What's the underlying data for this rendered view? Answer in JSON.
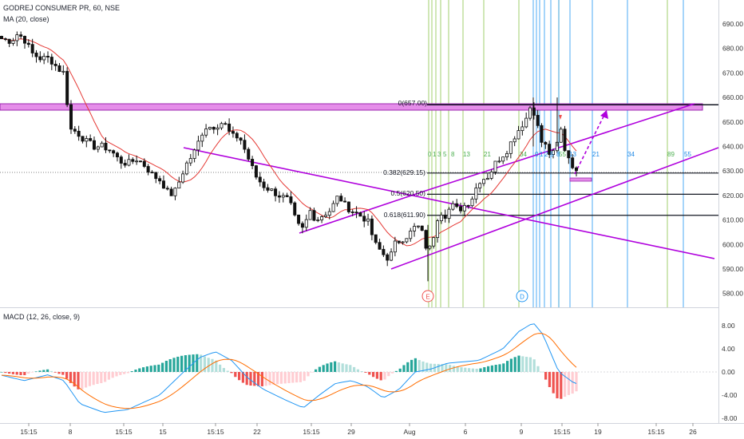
{
  "header": {
    "title": "GODREJ CONSUMER PR, 60, NSE",
    "indicator": "MA (20, close)"
  },
  "macd_panel": {
    "label": "MACD (12, 26, close, 9)"
  },
  "colors": {
    "candle": "#111111",
    "ma": "#e53935",
    "macd": "#2196f3",
    "signal": "#ff6d00",
    "hist_up": "#26a69a",
    "hist_up_light": "#b2dfdb",
    "hist_down": "#ef5350",
    "hist_down_light": "#ffcdd2",
    "trend": "#b000dd",
    "zone": "#e58de9",
    "fib_green": "#8bc34a",
    "fib_blue": "#2196f3",
    "fib_label_blue": "#1e88e5",
    "fib_label_green": "#4caf50"
  },
  "price_axis": [
    "690.00",
    "680.00",
    "670.00",
    "660.00",
    "650.00",
    "640.00",
    "630.00",
    "620.00",
    "610.00",
    "600.00",
    "590.00",
    "580.00"
  ],
  "macd_axis": [
    "8.00",
    "4.00",
    "0.00",
    "-4.00",
    "-8.00"
  ],
  "time_axis": [
    "15:15",
    "8",
    "15:15",
    "15",
    "15:15",
    "22",
    "15:15",
    "29",
    "Aug",
    "6",
    "9",
    "15:15",
    "19",
    "15:15",
    "26"
  ],
  "fib_levels": [
    {
      "label": "0(657.00)",
      "price": 657.0
    },
    {
      "label": "0.382(629.15)",
      "price": 629.15
    },
    {
      "label": "0.5(620.50)",
      "price": 620.5
    },
    {
      "label": "0.618(611.90)",
      "price": 611.9
    }
  ],
  "fib_time_labels": {
    "green": [
      "0",
      "1",
      "3",
      "5",
      "8",
      "13",
      "21",
      "34"
    ],
    "blue": [
      "0",
      "1",
      "2",
      "5",
      "8",
      "13",
      "21",
      "34",
      "55"
    ],
    "far_green": [
      "55",
      "89"
    ]
  },
  "markers": {
    "e": "E",
    "d": "D"
  },
  "chart_data": {
    "type": "candlestick",
    "price_range": [
      576,
      696
    ],
    "indicator_range": [
      -8.5,
      9.5
    ],
    "trendlines_note": "",
    "key_prices": {
      "start": 685,
      "high": 659,
      "low": 585,
      "last": 629
    }
  }
}
